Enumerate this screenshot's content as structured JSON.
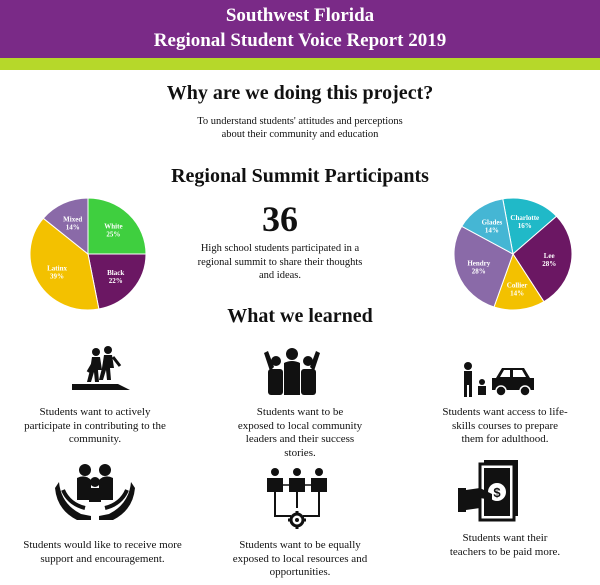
{
  "header": {
    "line1": "Southwest Florida",
    "line2": "Regional Student Voice Report 2019"
  },
  "why": {
    "title": "Why are we doing this project?",
    "text_line1": "To understand students' attitudes and perceptions",
    "text_line2": "about their community and education"
  },
  "summit": {
    "title": "Regional Summit Participants",
    "count": "36",
    "line1": "High school students participated in a",
    "line2": "regional summit to share their thoughts",
    "line3": "and ideas."
  },
  "learned": {
    "title": "What we learned",
    "items": [
      {
        "line1": "Students want to actively",
        "line2": "participate in contributing to the",
        "line3": "community.",
        "icon": "walking-people-icon"
      },
      {
        "line1": "Students want to be",
        "line2": "exposed to local community",
        "line3": "leaders and their success",
        "line4": "stories.",
        "icon": "group-leaders-icon"
      },
      {
        "line1": "Students want access to life-",
        "line2": "skills courses to prepare",
        "line3": "them for adulthood.",
        "icon": "car-mechanic-icon"
      },
      {
        "line1": "Students would like to receive more",
        "line2": "support and encouragement.",
        "icon": "family-hands-icon"
      },
      {
        "line1": "Students want to be equally",
        "line2": "exposed to local resources and",
        "line3": "opportunities.",
        "icon": "network-gear-icon"
      },
      {
        "line1": "Students want their",
        "line2": "teachers to be paid more.",
        "icon": "money-hand-icon"
      }
    ]
  },
  "chart_data": [
    {
      "type": "pie",
      "categories": [
        "White",
        "Black",
        "Latinx",
        "Mixed"
      ],
      "values": [
        25,
        22,
        39,
        14
      ],
      "labels": [
        "25%",
        "22%",
        "39%",
        "14%"
      ],
      "colors": [
        "#3fcf3f",
        "#6b1763",
        "#f3c100",
        "#8a6aa8"
      ]
    },
    {
      "type": "pie",
      "categories": [
        "Charlotte",
        "Lee",
        "Collier",
        "Hendry",
        "Glades"
      ],
      "values": [
        16,
        28,
        14,
        28,
        14
      ],
      "labels": [
        "16%",
        "28%",
        "14%",
        "28%",
        "14%"
      ],
      "colors": [
        "#20b9c8",
        "#6b1763",
        "#f3c100",
        "#8a6aa8",
        "#45b6d4"
      ]
    }
  ]
}
